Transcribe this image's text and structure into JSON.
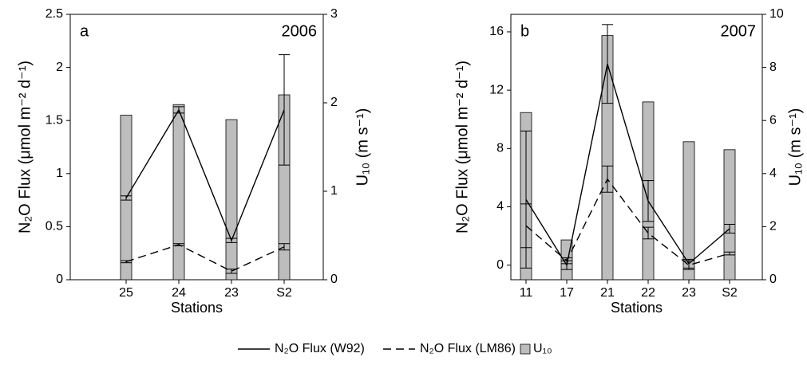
{
  "chart_data": [
    {
      "type": "combo",
      "x_label": "Stations",
      "y_label": "N₂O Flux (μmol m⁻² d⁻¹)",
      "y2_label": "U₁₀ (m s⁻¹)",
      "annotations": [
        "a",
        "2006"
      ],
      "categories": [
        "25",
        "24",
        "23",
        "S2"
      ],
      "ylim": [
        0,
        2.5
      ],
      "yticks": [
        0,
        0.5,
        1,
        1.5,
        2,
        2.5
      ],
      "y2lim": [
        0,
        3
      ],
      "y2ticks": [
        0,
        1,
        2,
        3
      ],
      "series": [
        {
          "name": "U₁₀",
          "type": "bar",
          "axis": "y2",
          "color": "#bdbdbd",
          "values": [
            1.86,
            1.98,
            1.81,
            2.09
          ]
        },
        {
          "name": "N₂O Flux (W92)",
          "type": "line",
          "dash": "solid",
          "color": "#000000",
          "values": [
            0.77,
            1.6,
            0.37,
            1.6
          ],
          "errors": [
            0.02,
            0.03,
            0.02,
            0.52
          ]
        },
        {
          "name": "N₂O Flux (LM86)",
          "type": "line",
          "dash": "dashed",
          "color": "#000000",
          "values": [
            0.17,
            0.33,
            0.08,
            0.31
          ],
          "errors": [
            0.01,
            0.01,
            0.02,
            0.03
          ]
        }
      ]
    },
    {
      "type": "combo",
      "x_label": "Stations",
      "y_label": "N₂O Flux (μmol m⁻² d⁻¹)",
      "y2_label": "U₁₀ (m s⁻¹)",
      "annotations": [
        "b",
        "2007"
      ],
      "categories": [
        "11",
        "17",
        "21",
        "22",
        "23",
        "S2"
      ],
      "ylim": [
        -1,
        17.2
      ],
      "yticks": [
        0,
        4,
        8,
        12,
        16
      ],
      "y2lim": [
        0,
        10
      ],
      "y2ticks": [
        0,
        2,
        4,
        6,
        8,
        10
      ],
      "series": [
        {
          "name": "U₁₀",
          "type": "bar",
          "axis": "y2",
          "color": "#bdbdbd",
          "values": [
            6.3,
            1.5,
            9.2,
            6.7,
            5.2,
            4.9
          ]
        },
        {
          "name": "N₂O Flux (W92)",
          "type": "line",
          "dash": "solid",
          "color": "#000000",
          "values": [
            4.5,
            0.0,
            13.8,
            4.4,
            0.1,
            2.5
          ],
          "errors": [
            4.7,
            0.3,
            2.7,
            1.4,
            0.3,
            0.3
          ]
        },
        {
          "name": "N₂O Flux (LM86)",
          "type": "line",
          "dash": "dashed",
          "color": "#000000",
          "values": [
            2.7,
            0.3,
            5.9,
            2.2,
            0.0,
            0.8
          ],
          "errors": [
            1.5,
            0.2,
            0.9,
            0.4,
            0.3,
            0.1
          ]
        }
      ]
    }
  ]
}
